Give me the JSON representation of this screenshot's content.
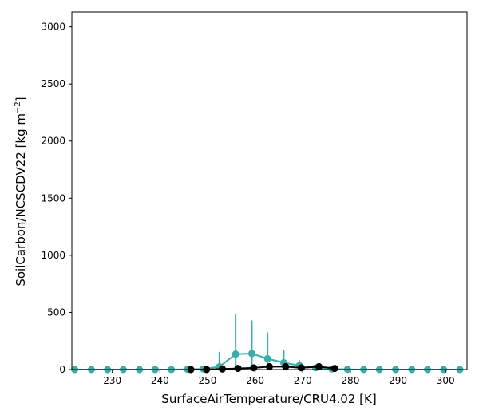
{
  "chart_data": {
    "type": "scatter",
    "xlabel": "SurfaceAirTemperature/CRU4.02 [K]",
    "ylabel": "SoilCarbon/NCSCDV22 [kg m",
    "ylabel_unit_exponent": "−2",
    "ylabel_close": "]",
    "xlim": [
      221.5,
      304.5
    ],
    "ylim": [
      0,
      3130
    ],
    "xticks": [
      230,
      240,
      250,
      260,
      270,
      280,
      290,
      300
    ],
    "yticks": [
      0,
      500,
      1000,
      1500,
      2000,
      2500,
      3000
    ],
    "grid": false,
    "legend": "none",
    "series": [
      {
        "color": "#3aada8",
        "points": [
          {
            "x": 222.1,
            "y": 0,
            "err": 0
          },
          {
            "x": 225.6,
            "y": 0,
            "err": 0
          },
          {
            "x": 229.0,
            "y": 0,
            "err": 0
          },
          {
            "x": 232.3,
            "y": 0,
            "err": 0
          },
          {
            "x": 235.7,
            "y": 0,
            "err": 0
          },
          {
            "x": 239.0,
            "y": 0,
            "err": 0
          },
          {
            "x": 242.4,
            "y": 0,
            "err": 0
          },
          {
            "x": 245.8,
            "y": 2,
            "err": 5
          },
          {
            "x": 249.1,
            "y": 5,
            "err": 20
          },
          {
            "x": 252.5,
            "y": 25,
            "err": 130
          },
          {
            "x": 255.9,
            "y": 135,
            "err": 345
          },
          {
            "x": 259.3,
            "y": 140,
            "err": 290
          },
          {
            "x": 262.6,
            "y": 95,
            "err": 230
          },
          {
            "x": 266.0,
            "y": 60,
            "err": 110
          },
          {
            "x": 269.3,
            "y": 35,
            "err": 45
          },
          {
            "x": 272.7,
            "y": 15,
            "err": 20
          },
          {
            "x": 276.1,
            "y": 5,
            "err": 10
          },
          {
            "x": 279.4,
            "y": 2,
            "err": 0
          },
          {
            "x": 282.8,
            "y": 0,
            "err": 0
          },
          {
            "x": 286.1,
            "y": 0,
            "err": 0
          },
          {
            "x": 289.5,
            "y": 0,
            "err": 0
          },
          {
            "x": 292.9,
            "y": 0,
            "err": 0
          },
          {
            "x": 296.2,
            "y": 0,
            "err": 0
          },
          {
            "x": 299.6,
            "y": 0,
            "err": 0
          },
          {
            "x": 303.0,
            "y": 0,
            "err": 0
          }
        ]
      },
      {
        "color": "#000000",
        "points": [
          {
            "x": 246.5,
            "y": 0,
            "err": 0
          },
          {
            "x": 249.8,
            "y": 0,
            "err": 0
          },
          {
            "x": 253.1,
            "y": 5,
            "err": 0
          },
          {
            "x": 256.4,
            "y": 10,
            "err": 0
          },
          {
            "x": 259.7,
            "y": 15,
            "err": 0
          },
          {
            "x": 263.0,
            "y": 25,
            "err": 0
          },
          {
            "x": 266.4,
            "y": 25,
            "err": 0
          },
          {
            "x": 269.7,
            "y": 15,
            "err": 0
          },
          {
            "x": 273.4,
            "y": 25,
            "err": 0
          },
          {
            "x": 276.7,
            "y": 10,
            "err": 0
          }
        ]
      }
    ]
  }
}
